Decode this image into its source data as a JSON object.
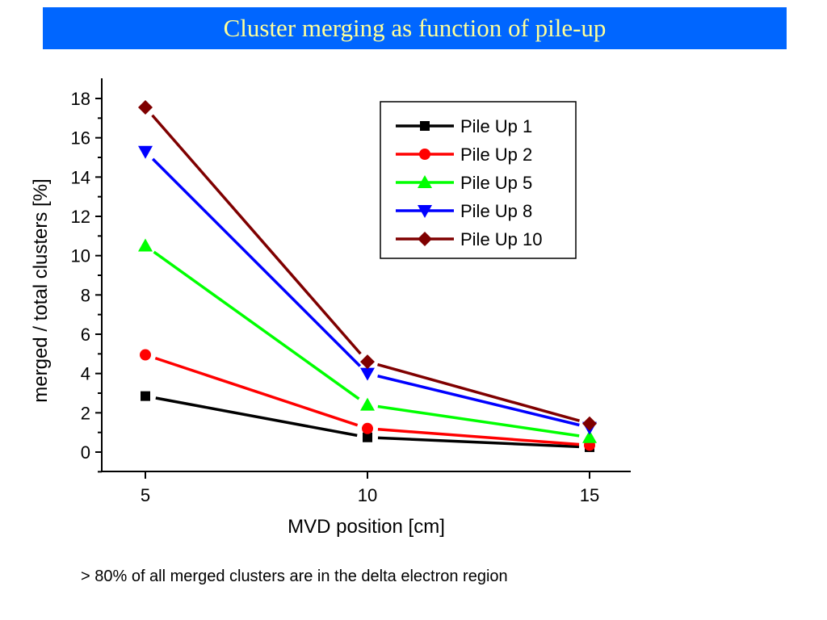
{
  "slide": {
    "title": "Cluster merging as function of pile-up",
    "caption": "> 80% of all merged clusters are in the delta electron region",
    "title_bar_color": "#0066ff",
    "title_text_color": "#ffff99"
  },
  "chart_data": {
    "type": "line",
    "title": "",
    "xlabel": "MVD position [cm]",
    "ylabel": "merged / total clusters [%]",
    "xlim": [
      4,
      16
    ],
    "ylim": [
      -1,
      19
    ],
    "xticks": [
      5,
      10,
      15
    ],
    "yticks": [
      0,
      2,
      4,
      6,
      8,
      10,
      12,
      14,
      16,
      18
    ],
    "grid": false,
    "legend_position": "top-right",
    "x": [
      5,
      10,
      15
    ],
    "series": [
      {
        "name": "Pile Up 1",
        "color": "#000000",
        "marker": "square",
        "values": [
          2.85,
          0.75,
          0.25
        ]
      },
      {
        "name": "Pile Up 2",
        "color": "#ff0000",
        "marker": "circle",
        "values": [
          4.95,
          1.2,
          0.35
        ]
      },
      {
        "name": "Pile Up 5",
        "color": "#00ff00",
        "marker": "triangle-up",
        "values": [
          10.5,
          2.4,
          0.75
        ]
      },
      {
        "name": "Pile Up 8",
        "color": "#0000ff",
        "marker": "triangle-down",
        "values": [
          15.3,
          4.0,
          1.25
        ]
      },
      {
        "name": "Pile Up 10",
        "color": "#7f0000",
        "marker": "diamond",
        "values": [
          17.55,
          4.6,
          1.45
        ]
      }
    ]
  }
}
